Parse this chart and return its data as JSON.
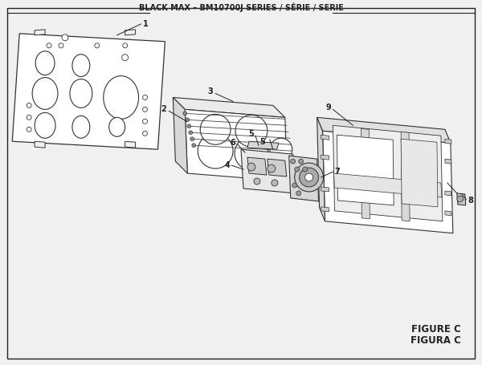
{
  "title": "BLACK MAX – BM10700J SERIES / SÉRIE / SERIE",
  "figure_label": "FIGURE C",
  "figura_label": "FIGURA C",
  "bg_color": "#f0f0f0",
  "border_color": "#222222",
  "lc": "#222222",
  "ec": "#333333",
  "fill_light": "#ebebeb",
  "fill_white": "#ffffff",
  "fill_mid": "#d8d8d8",
  "figsize": [
    6.0,
    4.55
  ],
  "dpi": 100
}
